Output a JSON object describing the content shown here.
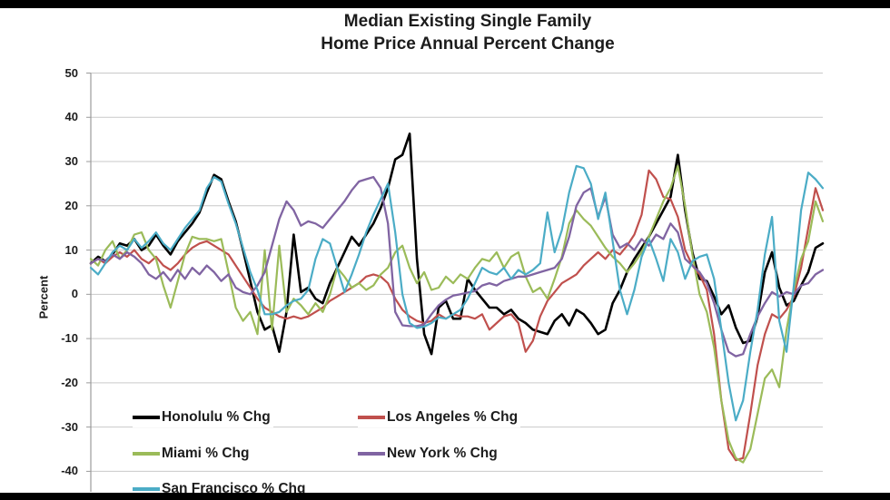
{
  "title": {
    "line1": "Median Existing Single Family",
    "line2": "Home Price Annual Percent Change"
  },
  "y_axis": {
    "label": "Percent"
  },
  "colors": {
    "gridline": "#c9c9c9",
    "axis": "#9b9b9b",
    "text": "#1c1c1c",
    "letterbox": "#000000",
    "background": "#ffffff"
  },
  "chart_data": {
    "type": "line",
    "title": "Median Existing Single Family Home Price Annual Percent Change",
    "xlabel": "",
    "ylabel": "Percent",
    "ylim": [
      -40,
      50
    ],
    "ytick_step": 10,
    "ytick_labels": [
      "50",
      "40",
      "30",
      "20",
      "10",
      "0",
      "-10",
      "-20",
      "-30",
      "-40"
    ],
    "grid": true,
    "x_tick_labels_shown": false,
    "legend_position": "inside-bottom-left",
    "series": [
      {
        "id": "honolulu",
        "name": "Honolulu % Chg",
        "color": "#000000",
        "line_width": 2.6,
        "values": [
          7,
          8.5,
          7.5,
          9,
          11.5,
          11,
          12.5,
          10,
          11,
          13.5,
          11,
          9,
          12,
          14,
          16,
          18.5,
          23,
          27,
          26,
          21,
          16.5,
          10,
          3,
          -4,
          -8,
          -7,
          -13,
          -4,
          13.5,
          0.5,
          1.5,
          -1,
          -2,
          2.5,
          6,
          9.5,
          13,
          11,
          13.5,
          16,
          19.5,
          24,
          30.5,
          31.5,
          36.3,
          8,
          -9,
          -13.5,
          -3,
          -1.5,
          -5.5,
          -5.5,
          3.5,
          1,
          -1,
          -3,
          -3,
          -4.5,
          -3.5,
          -5.5,
          -6.5,
          -8,
          -8.5,
          -9,
          -6,
          -4.5,
          -7,
          -3.5,
          -4.5,
          -6.5,
          -9,
          -8,
          -2,
          1,
          5,
          8,
          10.5,
          13,
          16,
          19,
          22,
          31.5,
          19,
          9.5,
          3.5,
          3,
          -0.5,
          -4.5,
          -2.5,
          -7.5,
          -11,
          -10.5,
          -5,
          5,
          9.5,
          1.5,
          -2.5,
          -1.5,
          2,
          5,
          10.5,
          11.5
        ]
      },
      {
        "id": "los-angeles",
        "name": "Los Angeles % Chg",
        "color": "#c0504d",
        "line_width": 2.2,
        "values": [
          7,
          8,
          7,
          8.5,
          9.5,
          8.5,
          10,
          8,
          7,
          8.5,
          6.5,
          5.5,
          7,
          9,
          10.5,
          11.5,
          12,
          11,
          10,
          9,
          6.5,
          4,
          1.5,
          -1,
          -3,
          -4,
          -5,
          -5.5,
          -5,
          -5.5,
          -5,
          -4,
          -3,
          -1.5,
          -0.5,
          0.5,
          1.5,
          2.5,
          4,
          4.5,
          4,
          2.5,
          -1,
          -3.5,
          -5,
          -6,
          -6.5,
          -6,
          -4.5,
          -5.5,
          -4.5,
          -5,
          -5,
          -5.5,
          -4.5,
          -8,
          -6.5,
          -5,
          -4.5,
          -6.5,
          -13,
          -10.5,
          -5,
          -1.5,
          0.5,
          2.5,
          3.5,
          4.5,
          6.5,
          8,
          9.5,
          8,
          10,
          9,
          11,
          13.5,
          18,
          28,
          26,
          22,
          21.5,
          17.5,
          10,
          6.5,
          4.5,
          1,
          -9,
          -24,
          -35,
          -37.5,
          -37,
          -27,
          -16,
          -9,
          -4.5,
          -5.5,
          -3.5,
          -0.5,
          6,
          15,
          24,
          19
        ]
      },
      {
        "id": "miami",
        "name": "Miami % Chg",
        "color": "#9bbb59",
        "line_width": 2.2,
        "values": [
          8,
          6.5,
          10,
          12,
          8,
          10,
          13.5,
          14,
          10,
          8,
          2,
          -3,
          3,
          9,
          13,
          12.5,
          12.5,
          12,
          12.5,
          5,
          -3,
          -6,
          -4,
          -9,
          10,
          -8,
          11,
          -4,
          -1,
          -2.5,
          -4.5,
          -2,
          -4,
          0,
          6,
          4,
          1.5,
          2.5,
          1,
          2,
          4.5,
          6,
          9.5,
          11,
          6,
          2.5,
          5,
          1,
          1.5,
          4,
          2.5,
          4.5,
          3.5,
          6,
          8,
          7.5,
          9.5,
          6,
          8.5,
          9.5,
          4,
          0.5,
          1.5,
          -1,
          3.5,
          8.5,
          16,
          19,
          17,
          15.5,
          13,
          10.5,
          8.5,
          7,
          5,
          7,
          9.5,
          13,
          17,
          21,
          24,
          29,
          20,
          9,
          0,
          -4,
          -12,
          -24,
          -33,
          -37,
          -38,
          -35,
          -27,
          -19,
          -17,
          -21,
          -8,
          1,
          8,
          12,
          21,
          16.5
        ]
      },
      {
        "id": "new-york",
        "name": "New York % Chg",
        "color": "#8064a2",
        "line_width": 2.3,
        "values": [
          7,
          8,
          7.5,
          9,
          8,
          9.5,
          8.5,
          7,
          4.5,
          3.5,
          5,
          3,
          5.5,
          3.5,
          6,
          4.5,
          6.5,
          5,
          3,
          4.5,
          1.5,
          0.5,
          0,
          2,
          5,
          11,
          17,
          21,
          19,
          15.5,
          16.5,
          16,
          15,
          17,
          19,
          21,
          23.5,
          25.5,
          26,
          26.5,
          24,
          16,
          -4,
          -7,
          -7.2,
          -7.2,
          -6.8,
          -4.5,
          -2.5,
          -1.2,
          -0.3,
          0,
          0.4,
          0.7,
          2,
          2.5,
          2,
          3,
          3.5,
          4,
          4,
          4.5,
          5,
          5.5,
          6,
          8,
          13,
          20,
          23,
          24,
          17.5,
          22,
          13.5,
          10.5,
          11.5,
          10,
          12.5,
          11,
          13.5,
          12.5,
          16,
          14,
          8,
          6.5,
          5,
          2.5,
          -2,
          -8,
          -13,
          -14,
          -13.5,
          -9,
          -5,
          -2,
          0.5,
          -0.5,
          0.5,
          0,
          2,
          2.5,
          4.5,
          5.5
        ]
      },
      {
        "id": "san-francisco",
        "name": "San Francisco % Chg",
        "color": "#4bacc6",
        "line_width": 2.2,
        "values": [
          6,
          4.5,
          7,
          9.5,
          11,
          10,
          12.5,
          10.5,
          12,
          14,
          11.5,
          10,
          12.5,
          15,
          17,
          19,
          24,
          26.5,
          25.5,
          20.5,
          16,
          10.5,
          5,
          1,
          -4.5,
          -4.5,
          -4,
          -2.5,
          -1.5,
          -1,
          1,
          8,
          12.5,
          11.5,
          6,
          0.5,
          4.5,
          9,
          14,
          18,
          21.5,
          25,
          14,
          0,
          -6.5,
          -7.6,
          -7.3,
          -6.5,
          -5.2,
          -5.5,
          -4.5,
          -3.5,
          -1,
          2.5,
          6,
          5,
          4.5,
          6,
          3.5,
          5.5,
          4.5,
          5.5,
          7,
          18.5,
          9.5,
          14.5,
          23,
          29,
          28.5,
          25,
          17,
          23,
          12,
          1,
          -4.5,
          1,
          8.5,
          12.5,
          8,
          3,
          12.5,
          9.5,
          3.5,
          7.5,
          8.5,
          9,
          3.5,
          -8,
          -20,
          -28.5,
          -24,
          -13,
          -3.5,
          9,
          17.5,
          -6,
          -13,
          2,
          19,
          27.5,
          26,
          24
        ]
      }
    ]
  },
  "legend": {
    "items": [
      "Honolulu % Chg",
      "Los Angeles % Chg",
      "Miami % Chg",
      "New York % Chg",
      "San Francisco % Chg"
    ]
  }
}
